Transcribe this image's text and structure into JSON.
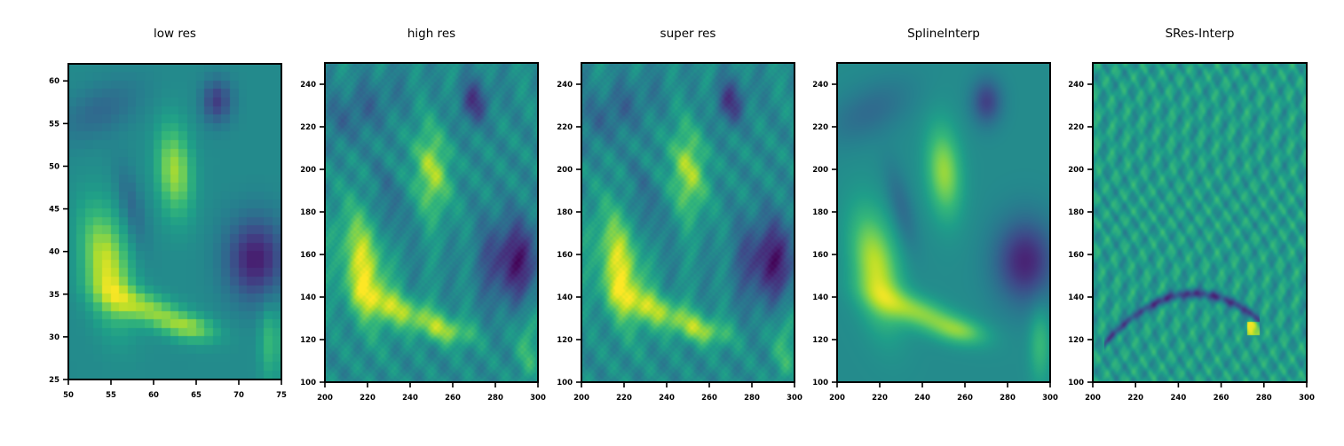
{
  "chart_data": [
    {
      "type": "heatmap",
      "title": "low res",
      "xlim": [
        50,
        75
      ],
      "ylim": [
        25,
        62
      ],
      "xticks": [
        50,
        55,
        60,
        65,
        70,
        75
      ],
      "yticks": [
        25,
        30,
        35,
        40,
        45,
        50,
        55,
        60
      ],
      "style": "pixelated",
      "colormap": "viridis"
    },
    {
      "type": "heatmap",
      "title": "high res",
      "xlim": [
        200,
        300
      ],
      "ylim": [
        100,
        250
      ],
      "xticks": [
        200,
        220,
        240,
        260,
        280,
        300
      ],
      "yticks": [
        100,
        120,
        140,
        160,
        180,
        200,
        220,
        240
      ],
      "style": "smooth",
      "colormap": "viridis"
    },
    {
      "type": "heatmap",
      "title": "super res",
      "xlim": [
        200,
        300
      ],
      "ylim": [
        100,
        250
      ],
      "xticks": [
        200,
        220,
        240,
        260,
        280,
        300
      ],
      "yticks": [
        100,
        120,
        140,
        160,
        180,
        200,
        220,
        240
      ],
      "style": "smooth",
      "colormap": "viridis"
    },
    {
      "type": "heatmap",
      "title": "SplineInterp",
      "xlim": [
        200,
        300
      ],
      "ylim": [
        100,
        250
      ],
      "xticks": [
        200,
        220,
        240,
        260,
        280,
        300
      ],
      "yticks": [
        100,
        120,
        140,
        160,
        180,
        200,
        220,
        240
      ],
      "style": "blurred",
      "colormap": "viridis"
    },
    {
      "type": "heatmap",
      "title": "SRes-Interp",
      "xlim": [
        200,
        300
      ],
      "ylim": [
        100,
        250
      ],
      "xticks": [
        200,
        220,
        240,
        260,
        280,
        300
      ],
      "yticks": [
        100,
        120,
        140,
        160,
        180,
        200,
        220,
        240
      ],
      "style": "residual",
      "colormap": "viridis"
    }
  ]
}
